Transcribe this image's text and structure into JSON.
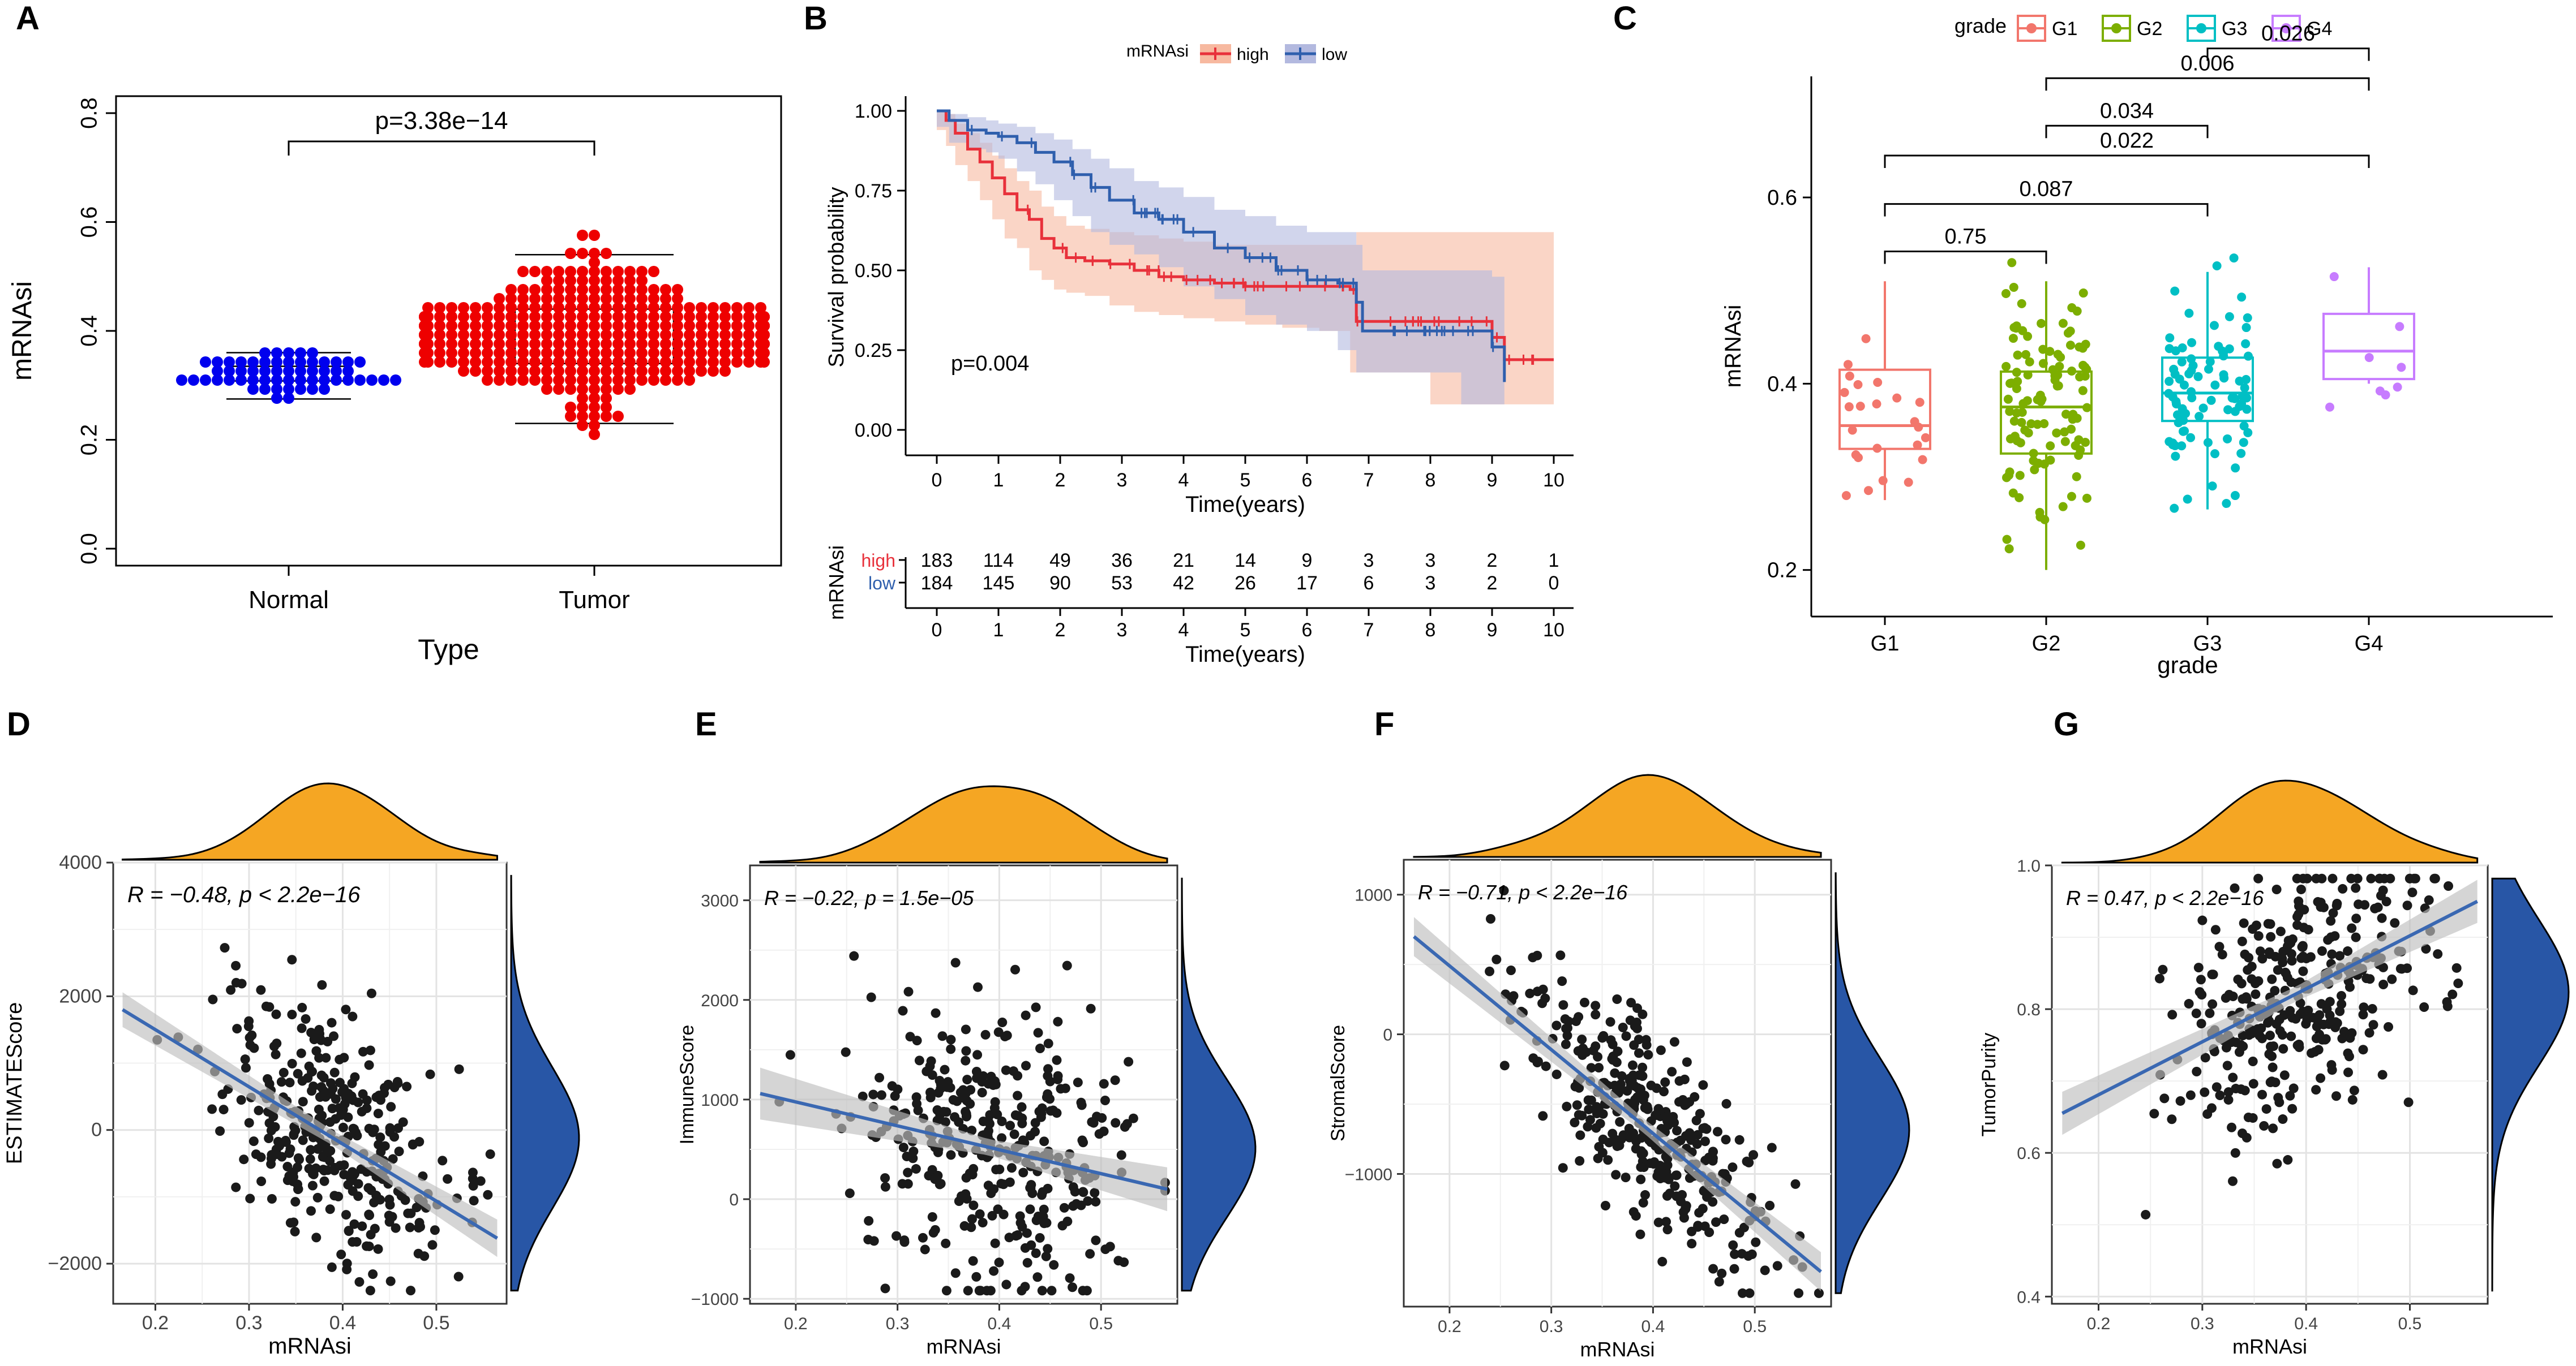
{
  "colors": {
    "normal": "#0000ee",
    "tumor": "#ee0000",
    "km_high": "#e8313b",
    "km_low": "#2f5fad",
    "km_high_band": "#f7b9a0",
    "km_low_band": "#b3b9df",
    "G1": "#f2766c",
    "G2": "#7cae00",
    "G3": "#00bfc4",
    "G4": "#c77cff",
    "density_top": "#f5a623",
    "density_right": "#2856a6",
    "regression": "#3a68b2",
    "ci_band": "#bfbfbf",
    "point": "#1a1a1a"
  },
  "chart_data": [
    {
      "panel": "A",
      "type": "scatter",
      "subtype": "beeswarm",
      "ylabel": "mRNAsi",
      "xlabel": "Type",
      "categories": [
        "Normal",
        "Tumor"
      ],
      "ylim": [
        0,
        0.8
      ],
      "yticks": [
        "0.0",
        "0.2",
        "0.4",
        "0.6",
        "0.8"
      ],
      "annotation": "p=3.38e−14",
      "series": [
        {
          "name": "Normal",
          "n": 59,
          "mean": 0.32,
          "sd": 0.02,
          "min": 0.24,
          "max": 0.36,
          "q1": 0.308,
          "q3": 0.335,
          "whisker_low": 0.275,
          "whisker_high": 0.36
        },
        {
          "name": "Tumor",
          "n": 374,
          "mean": 0.39,
          "sd": 0.065,
          "min": 0.17,
          "max": 0.57,
          "q1": 0.34,
          "q3": 0.44,
          "whisker_low": 0.23,
          "whisker_high": 0.54
        }
      ]
    },
    {
      "panel": "B",
      "type": "line",
      "subtype": "kaplan-meier",
      "xlabel": "Time(years)",
      "ylabel": "Survival probability",
      "xlim": [
        0,
        10
      ],
      "ylim": [
        0,
        1
      ],
      "xticks": [
        "0",
        "1",
        "2",
        "3",
        "4",
        "5",
        "6",
        "7",
        "8",
        "9",
        "10"
      ],
      "yticks": [
        "0.00",
        "0.25",
        "0.50",
        "0.75",
        "1.00"
      ],
      "legend_title": "mRNAsi",
      "legend": [
        "high",
        "low"
      ],
      "annotation": "p=0.004",
      "risk_table_title": "mRNAsi",
      "risk_table_xlabel": "Time(years)",
      "risk_table": {
        "times": [
          "0",
          "1",
          "2",
          "3",
          "4",
          "5",
          "6",
          "7",
          "8",
          "9",
          "10"
        ],
        "high": [
          "183",
          "114",
          "49",
          "36",
          "21",
          "14",
          "9",
          "3",
          "3",
          "2",
          "1"
        ],
        "low": [
          "184",
          "145",
          "90",
          "53",
          "42",
          "26",
          "17",
          "6",
          "3",
          "2",
          "0"
        ]
      },
      "series": [
        {
          "name": "high",
          "x": [
            0,
            0.15,
            0.3,
            0.5,
            0.7,
            0.9,
            1.1,
            1.3,
            1.5,
            1.7,
            1.9,
            2.1,
            2.4,
            2.8,
            3.2,
            3.6,
            4.0,
            4.5,
            5.0,
            5.6,
            6.2,
            6.7,
            6.8,
            8.0,
            8.7,
            9.0,
            9.2,
            10.0
          ],
          "y": [
            1.0,
            0.97,
            0.93,
            0.88,
            0.84,
            0.79,
            0.74,
            0.69,
            0.66,
            0.6,
            0.57,
            0.54,
            0.53,
            0.52,
            0.5,
            0.48,
            0.47,
            0.46,
            0.45,
            0.45,
            0.45,
            0.44,
            0.34,
            0.34,
            0.34,
            0.29,
            0.22,
            0.22
          ],
          "upper": [
            1.0,
            0.99,
            0.96,
            0.93,
            0.9,
            0.86,
            0.82,
            0.78,
            0.75,
            0.7,
            0.67,
            0.64,
            0.63,
            0.62,
            0.61,
            0.6,
            0.59,
            0.58,
            0.58,
            0.58,
            0.58,
            0.58,
            0.62,
            0.62,
            0.62,
            0.62,
            0.62,
            0.62
          ],
          "lower": [
            1.0,
            0.94,
            0.89,
            0.83,
            0.78,
            0.72,
            0.66,
            0.6,
            0.57,
            0.5,
            0.47,
            0.44,
            0.43,
            0.42,
            0.39,
            0.37,
            0.36,
            0.35,
            0.34,
            0.33,
            0.32,
            0.31,
            0.18,
            0.18,
            0.08,
            0.08,
            0.08,
            0.08
          ]
        },
        {
          "name": "low",
          "x": [
            0,
            0.2,
            0.5,
            0.8,
            1.0,
            1.3,
            1.6,
            1.9,
            2.2,
            2.5,
            2.8,
            3.2,
            3.6,
            4.0,
            4.5,
            5.0,
            5.5,
            6.0,
            6.5,
            6.8,
            6.9,
            7.5,
            8.0,
            8.5,
            9.0,
            9.2
          ],
          "y": [
            1.0,
            0.97,
            0.94,
            0.93,
            0.92,
            0.9,
            0.87,
            0.84,
            0.8,
            0.76,
            0.72,
            0.68,
            0.66,
            0.62,
            0.57,
            0.54,
            0.5,
            0.47,
            0.46,
            0.4,
            0.31,
            0.31,
            0.31,
            0.31,
            0.26,
            0.15
          ],
          "upper": [
            1.0,
            0.99,
            0.98,
            0.97,
            0.96,
            0.95,
            0.93,
            0.91,
            0.88,
            0.85,
            0.82,
            0.78,
            0.76,
            0.73,
            0.69,
            0.67,
            0.64,
            0.62,
            0.62,
            0.58,
            0.5,
            0.5,
            0.5,
            0.5,
            0.48,
            0.48
          ],
          "lower": [
            1.0,
            0.95,
            0.9,
            0.88,
            0.87,
            0.85,
            0.81,
            0.77,
            0.72,
            0.67,
            0.62,
            0.58,
            0.55,
            0.51,
            0.45,
            0.41,
            0.36,
            0.33,
            0.31,
            0.25,
            0.18,
            0.18,
            0.18,
            0.18,
            0.08,
            0.08
          ]
        }
      ]
    },
    {
      "panel": "C",
      "type": "bar",
      "subtype": "boxplot",
      "xlabel": "grade",
      "ylabel": "mRNAsi",
      "categories": [
        "G1",
        "G2",
        "G3",
        "G4"
      ],
      "ylim": [
        0.15,
        0.73
      ],
      "yticks": [
        "0.2",
        "0.4",
        "0.6"
      ],
      "legend_title": "grade",
      "legend": [
        "G1",
        "G2",
        "G3",
        "G4"
      ],
      "boxes": [
        {
          "name": "G1",
          "n": 24,
          "q1": 0.33,
          "median": 0.355,
          "q3": 0.415,
          "whisker_low": 0.275,
          "whisker_high": 0.51,
          "mean": 0.365,
          "sd": 0.05
        },
        {
          "name": "G2",
          "n": 110,
          "q1": 0.325,
          "median": 0.375,
          "q3": 0.413,
          "whisker_low": 0.2,
          "whisker_high": 0.51,
          "mean": 0.37,
          "sd": 0.065
        },
        {
          "name": "G3",
          "n": 85,
          "q1": 0.36,
          "median": 0.39,
          "q3": 0.428,
          "whisker_low": 0.265,
          "whisker_high": 0.52,
          "mean": 0.39,
          "sd": 0.055
        },
        {
          "name": "G4",
          "n": 8,
          "q1": 0.405,
          "median": 0.435,
          "q3": 0.475,
          "whisker_low": 0.4,
          "whisker_high": 0.525,
          "mean": 0.43,
          "sd": 0.05
        }
      ],
      "comparisons": [
        {
          "from": "G1",
          "to": "G2",
          "label": "0.75",
          "y": 0.542
        },
        {
          "from": "G1",
          "to": "G3",
          "label": "0.087",
          "y": 0.593
        },
        {
          "from": "G1",
          "to": "G4",
          "label": "0.022",
          "y": 0.645
        },
        {
          "from": "G2",
          "to": "G3",
          "label": "0.034",
          "y": 0.677
        },
        {
          "from": "G2",
          "to": "G4",
          "label": "0.006",
          "y": 0.728
        },
        {
          "from": "G3",
          "to": "G4",
          "label": "0.026",
          "y": 0.76
        }
      ]
    },
    {
      "panel": "D",
      "type": "scatter",
      "subtype": "regression-with-marginal-density",
      "xlabel": "mRNAsi",
      "ylabel": "ESTIMATEScore",
      "xlim": [
        0.155,
        0.575
      ],
      "ylim": [
        -2600,
        4000
      ],
      "xticks": [
        "0.2",
        "0.3",
        "0.4",
        "0.5"
      ],
      "yticks": [
        "−2000",
        "0",
        "2000",
        "4000"
      ],
      "annotation": "R = −0.48, p < 2.2e−16",
      "n": 360,
      "x_mean": 0.39,
      "x_sd": 0.065,
      "y_sd": 900,
      "fit": {
        "x": [
          0.165,
          0.565
        ],
        "y": [
          1800,
          -1620
        ]
      },
      "ci_half_width": {
        "x": [
          0.165,
          0.39,
          0.565
        ],
        "half": [
          260,
          110,
          280
        ]
      }
    },
    {
      "panel": "E",
      "type": "scatter",
      "subtype": "regression-with-marginal-density",
      "xlabel": "mRNAsi",
      "ylabel": "ImmuneScore",
      "xlim": [
        0.155,
        0.575
      ],
      "ylim": [
        -1050,
        3350
      ],
      "xticks": [
        "0.2",
        "0.3",
        "0.4",
        "0.5"
      ],
      "yticks": [
        "−1000",
        "0",
        "1000",
        "2000",
        "3000"
      ],
      "annotation": "R = −0.22, p = 1.5e−05",
      "n": 360,
      "x_mean": 0.39,
      "x_sd": 0.065,
      "y_sd": 680,
      "fit": {
        "x": [
          0.165,
          0.565
        ],
        "y": [
          1060,
          100
        ]
      },
      "ci_half_width": {
        "x": [
          0.165,
          0.39,
          0.565
        ],
        "half": [
          260,
          80,
          220
        ]
      }
    },
    {
      "panel": "F",
      "type": "scatter",
      "subtype": "regression-with-marginal-density",
      "xlabel": "mRNAsi",
      "ylabel": "StromalScore",
      "xlim": [
        0.155,
        0.575
      ],
      "ylim": [
        -1950,
        1250
      ],
      "xticks": [
        "0.2",
        "0.3",
        "0.4",
        "0.5"
      ],
      "yticks": [
        "−1000",
        "0",
        "1000"
      ],
      "annotation": "R = −0.71, p < 2.2e−16",
      "n": 360,
      "x_mean": 0.39,
      "x_sd": 0.065,
      "y_sd": 330,
      "fit": {
        "x": [
          0.165,
          0.565
        ],
        "y": [
          700,
          -1700
        ]
      },
      "ci_half_width": {
        "x": [
          0.165,
          0.39,
          0.565
        ],
        "half": [
          140,
          50,
          140
        ]
      }
    },
    {
      "panel": "G",
      "type": "scatter",
      "subtype": "regression-with-marginal-density",
      "xlabel": "mRNAsi",
      "ylabel": "TumorPurity",
      "xlim": [
        0.155,
        0.575
      ],
      "ylim": [
        0.39,
        1.0
      ],
      "xticks": [
        "0.2",
        "0.3",
        "0.4",
        "0.5"
      ],
      "yticks": [
        "0.4",
        "0.6",
        "0.8",
        "1.0"
      ],
      "annotation": "R = 0.47, p < 2.2e−16",
      "n": 360,
      "x_mean": 0.39,
      "x_sd": 0.065,
      "y_sd": 0.09,
      "fit": {
        "x": [
          0.165,
          0.565
        ],
        "y": [
          0.655,
          0.95
        ]
      },
      "ci_half_width": {
        "x": [
          0.165,
          0.39,
          0.565
        ],
        "half": [
          0.03,
          0.01,
          0.03
        ]
      }
    }
  ],
  "panel_letters": [
    "A",
    "B",
    "C",
    "D",
    "E",
    "F",
    "G"
  ]
}
